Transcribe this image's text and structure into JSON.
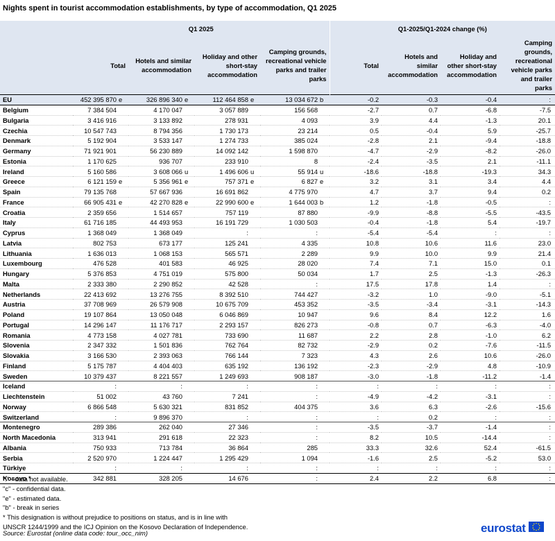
{
  "title": "Nights spent in tourist accommodation establishments, by type of accommodation, Q1 2025",
  "header": {
    "group1": "Q1 2025",
    "group2": "Q1-2025/Q1-2024 change  (%)",
    "columns": [
      "Total",
      "Hotels and similar accommodation",
      "Holiday and other short-stay accommodation",
      "Camping grounds, recreational vehicle parks and trailer parks",
      "Total",
      "Hotels and similar accommodation",
      "Holiday and other short-stay accommodation",
      "Camping grounds, recreational vehicle parks and trailer parks"
    ]
  },
  "rows": [
    {
      "name": "EU",
      "v": [
        "452 395 870",
        "e",
        "326 896 340",
        "e",
        "112 464 858",
        "e",
        "13 034 672",
        "b",
        "-0.2",
        "-0.3",
        "-0.4",
        ":"
      ]
    },
    {
      "name": "Belgium",
      "v": [
        "7 384 504",
        "",
        "4 170 047",
        "",
        "3 057 889",
        "",
        "156 568",
        "",
        "-2.7",
        "0.7",
        "-6.8",
        "-7.5"
      ]
    },
    {
      "name": "Bulgaria",
      "v": [
        "3 416 916",
        "",
        "3 133 892",
        "",
        "278 931",
        "",
        "4 093",
        "",
        "3.9",
        "4.4",
        "-1.3",
        "20.1"
      ]
    },
    {
      "name": "Czechia",
      "v": [
        "10 547 743",
        "",
        "8 794 356",
        "",
        "1 730 173",
        "",
        "23 214",
        "",
        "0.5",
        "-0.4",
        "5.9",
        "-25.7"
      ]
    },
    {
      "name": "Denmark",
      "v": [
        "5 192 904",
        "",
        "3 533 147",
        "",
        "1 274 733",
        "",
        "385 024",
        "",
        "-2.8",
        "2.1",
        "-9.4",
        "-18.8"
      ]
    },
    {
      "name": "Germany",
      "v": [
        "71 921 901",
        "",
        "56 230 889",
        "",
        "14 092 142",
        "",
        "1 598 870",
        "",
        "-4.7",
        "-2.9",
        "-8.2",
        "-26.0"
      ]
    },
    {
      "name": "Estonia",
      "v": [
        "1 170 625",
        "",
        "936 707",
        "",
        "233 910",
        "",
        "8",
        "",
        "-2.4",
        "-3.5",
        "2.1",
        "-11.1"
      ]
    },
    {
      "name": "Ireland",
      "v": [
        "5 160 586",
        "",
        "3 608 066",
        "u",
        "1 496 606",
        "u",
        "55 914",
        "u",
        "-18.6",
        "-18.8",
        "-19.3",
        "34.3"
      ]
    },
    {
      "name": "Greece",
      "v": [
        "6 121 159",
        "e",
        "5 356 961",
        "e",
        "757 371",
        "e",
        "6 827",
        "e",
        "3.2",
        "3.1",
        "3.4",
        "4.4"
      ]
    },
    {
      "name": "Spain",
      "v": [
        "79 135 768",
        "",
        "57 667 936",
        "",
        "16 691 862",
        "",
        "4 775 970",
        "",
        "4.7",
        "3.7",
        "9.4",
        "0.2"
      ]
    },
    {
      "name": "France",
      "v": [
        "66 905 431",
        "e",
        "42 270 828",
        "e",
        "22 990 600",
        "e",
        "1 644 003",
        "b",
        "1.2",
        "-1.8",
        "-0.5",
        ":"
      ]
    },
    {
      "name": "Croatia",
      "v": [
        "2 359 656",
        "",
        "1 514 657",
        "",
        "757 119",
        "",
        "87 880",
        "",
        "-9.9",
        "-8.8",
        "-5.5",
        "-43.5"
      ]
    },
    {
      "name": "Italy",
      "v": [
        "61 716 185",
        "",
        "44 493 953",
        "",
        "16 191 729",
        "",
        "1 030 503",
        "",
        "-0.4",
        "-1.8",
        "5.4",
        "-19.7"
      ]
    },
    {
      "name": "Cyprus",
      "v": [
        "1 368 049",
        "",
        "1 368 049",
        "",
        ":",
        "",
        ":",
        "",
        "-5.4",
        "-5.4",
        ":",
        ":"
      ]
    },
    {
      "name": "Latvia",
      "v": [
        "802 753",
        "",
        "673 177",
        "",
        "125 241",
        "",
        "4 335",
        "",
        "10.8",
        "10.6",
        "11.6",
        "23.0"
      ]
    },
    {
      "name": "Lithuania",
      "v": [
        "1 636 013",
        "",
        "1 068 153",
        "",
        "565 571",
        "",
        "2 289",
        "",
        "9.9",
        "10.0",
        "9.9",
        "21.4"
      ]
    },
    {
      "name": "Luxembourg",
      "v": [
        "476 528",
        "",
        "401 583",
        "",
        "46 925",
        "",
        "28 020",
        "",
        "7.4",
        "7.1",
        "15.0",
        "0.1"
      ]
    },
    {
      "name": "Hungary",
      "v": [
        "5 376 853",
        "",
        "4 751 019",
        "",
        "575 800",
        "",
        "50 034",
        "",
        "1.7",
        "2.5",
        "-1.3",
        "-26.3"
      ]
    },
    {
      "name": "Malta",
      "v": [
        "2 333 380",
        "",
        "2 290 852",
        "",
        "42 528",
        "",
        ":",
        "",
        "17.5",
        "17.8",
        "1.4",
        ":"
      ]
    },
    {
      "name": "Netherlands",
      "v": [
        "22 413 692",
        "",
        "13 276 755",
        "",
        "8 392 510",
        "",
        "744 427",
        "",
        "-3.2",
        "1.0",
        "-9.0",
        "-5.1"
      ]
    },
    {
      "name": "Austria",
      "v": [
        "37 708 969",
        "",
        "26 579 908",
        "",
        "10 675 709",
        "",
        "453 352",
        "",
        "-3.5",
        "-3.4",
        "-3.1",
        "-14.3"
      ]
    },
    {
      "name": "Poland",
      "v": [
        "19 107 864",
        "",
        "13 050 048",
        "",
        "6 046 869",
        "",
        "10 947",
        "",
        "9.6",
        "8.4",
        "12.2",
        "1.6"
      ]
    },
    {
      "name": "Portugal",
      "v": [
        "14 296 147",
        "",
        "11 176 717",
        "",
        "2 293 157",
        "",
        "826 273",
        "",
        "-0.8",
        "0.7",
        "-6.3",
        "-4.0"
      ]
    },
    {
      "name": "Romania",
      "v": [
        "4 773 158",
        "",
        "4 027 781",
        "",
        "733 690",
        "",
        "11 687",
        "",
        "2.2",
        "2.8",
        "-1.0",
        "6.2"
      ]
    },
    {
      "name": "Slovenia",
      "v": [
        "2 347 332",
        "",
        "1 501 836",
        "",
        "762 764",
        "",
        "82 732",
        "",
        "-2.9",
        "0.2",
        "-7.6",
        "-11.5"
      ]
    },
    {
      "name": "Slovakia",
      "v": [
        "3 166 530",
        "",
        "2 393 063",
        "",
        "766 144",
        "",
        "7 323",
        "",
        "4.3",
        "2.6",
        "10.6",
        "-26.0"
      ]
    },
    {
      "name": "Finland",
      "v": [
        "5 175 787",
        "",
        "4 404 403",
        "",
        "635 192",
        "",
        "136 192",
        "",
        "-2.3",
        "-2.9",
        "4.8",
        "-10.9"
      ]
    },
    {
      "name": "Sweden",
      "v": [
        "10 379 437",
        "",
        "8 221 557",
        "",
        "1 249 693",
        "",
        "908 187",
        "",
        "-3.0",
        "-1.8",
        "-11.2",
        "-1.4"
      ]
    },
    {
      "name": "Iceland",
      "v": [
        ":",
        "",
        ":",
        "",
        ":",
        "",
        ":",
        "",
        ":",
        ":",
        ":",
        ":"
      ]
    },
    {
      "name": "Liechtenstein",
      "v": [
        "51 002",
        "",
        "43 760",
        "",
        "7 241",
        "",
        ":",
        "",
        "-4.9",
        "-4.2",
        "-3.1",
        ":"
      ]
    },
    {
      "name": "Norway",
      "v": [
        "6 866 548",
        "",
        "5 630 321",
        "",
        "831 852",
        "",
        "404 375",
        "",
        "3.6",
        "6.3",
        "-2.6",
        "-15.6"
      ]
    },
    {
      "name": "Switzerland",
      "v": [
        ":",
        "",
        "9 896 370",
        "",
        ":",
        "",
        ":",
        "",
        ":",
        "0.2",
        ":",
        ":"
      ]
    },
    {
      "name": "Montenegro",
      "v": [
        "289 386",
        "",
        "262 040",
        "",
        "27 346",
        "",
        ":",
        "",
        "-3.5",
        "-3.7",
        "-1.4",
        ":"
      ]
    },
    {
      "name": "North Macedonia",
      "v": [
        "313 941",
        "",
        "291 618",
        "",
        "22 323",
        "",
        ":",
        "",
        "8.2",
        "10.5",
        "-14.4",
        ":"
      ]
    },
    {
      "name": "Albania",
      "v": [
        "750 933",
        "",
        "713 784",
        "",
        "36 864",
        "",
        "285",
        "",
        "33.3",
        "32.6",
        "52.4",
        "-61.5"
      ]
    },
    {
      "name": "Serbia",
      "v": [
        "2 520 970",
        "",
        "1 224 447",
        "",
        "1 295 429",
        "",
        "1 094",
        "",
        "-1.6",
        "2.5",
        "-5.2",
        "53.0"
      ]
    },
    {
      "name": "Türkiye",
      "v": [
        ":",
        "",
        ":",
        "",
        ":",
        "",
        ":",
        "",
        ":",
        ":",
        ":",
        ":"
      ]
    },
    {
      "name": "Kosovo *",
      "v": [
        "342 881",
        "",
        "328 205",
        "",
        "14 676",
        "",
        ":",
        "",
        "2.4",
        "2.2",
        "6.8",
        ":"
      ]
    }
  ],
  "notes": [
    "\":\" - data not available.",
    "\"c\" - confidential data.",
    "\"e\" - estimated data.",
    "\"b\" - break in series",
    "* This designation is without prejudice to positions on status, and is in line with",
    "UNSCR 1244/1999 and the ICJ Opinion on the Kosovo Declaration of Independence."
  ],
  "source": "Source:  Eurostat (online data code: tour_occ_nim)",
  "logo": {
    "text": "eurostat",
    "icon": "eu-flag-icon",
    "color": "#0e47cb"
  }
}
